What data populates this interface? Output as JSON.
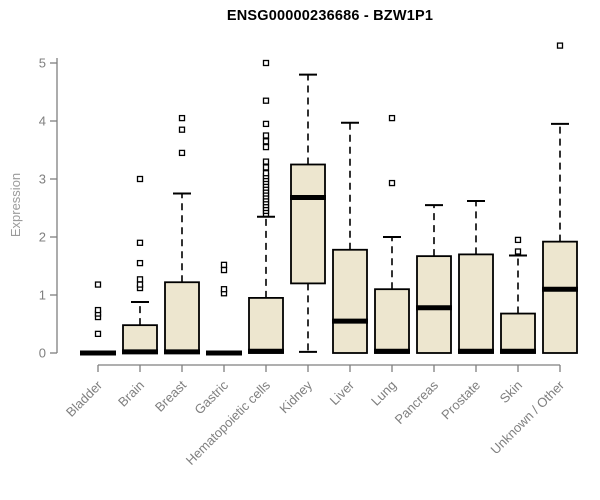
{
  "chart_data": {
    "type": "box",
    "title": "ENSG00000236686 - BZW1P1",
    "ylabel": "Expression",
    "xlabel": "",
    "ylim": [
      0,
      5.4
    ],
    "yticks": [
      0,
      1,
      2,
      3,
      4,
      5
    ],
    "grid": false,
    "legend": "none",
    "categories": [
      "Bladder",
      "Brain",
      "Breast",
      "Gastric",
      "Hematopoietic cells",
      "Kidney",
      "Liver",
      "Lung",
      "Pancreas",
      "Prostate",
      "Skin",
      "Unknown / Other"
    ],
    "boxes": [
      {
        "category": "Bladder",
        "q1": 0,
        "median": 0,
        "q3": 0.02,
        "whisker_low": 0,
        "whisker_high": 0.04,
        "outliers": [
          0.33,
          0.62,
          0.68,
          0.74,
          1.18
        ]
      },
      {
        "category": "Brain",
        "q1": 0,
        "median": 0.02,
        "q3": 0.48,
        "whisker_low": 0,
        "whisker_high": 0.88,
        "outliers": [
          1.12,
          1.18,
          1.27,
          1.55,
          1.9,
          3.0
        ]
      },
      {
        "category": "Breast",
        "q1": 0,
        "median": 0.02,
        "q3": 1.22,
        "whisker_low": 0,
        "whisker_high": 2.75,
        "outliers": [
          3.45,
          3.85,
          4.05
        ]
      },
      {
        "category": "Gastric",
        "q1": 0,
        "median": 0,
        "q3": 0.02,
        "whisker_low": 0,
        "whisker_high": 0.04,
        "outliers": [
          1.03,
          1.1,
          1.43,
          1.52
        ]
      },
      {
        "category": "Hematopoietic cells",
        "q1": 0,
        "median": 0.03,
        "q3": 0.95,
        "whisker_low": 0,
        "whisker_high": 2.35,
        "outliers": [
          2.4,
          2.45,
          2.5,
          2.55,
          2.6,
          2.65,
          2.7,
          2.75,
          2.8,
          2.85,
          2.9,
          2.95,
          3.0,
          3.05,
          3.1,
          3.2,
          3.3,
          3.55,
          3.65,
          3.75,
          3.95,
          4.35,
          5.0
        ]
      },
      {
        "category": "Kidney",
        "q1": 1.2,
        "median": 2.68,
        "q3": 3.25,
        "whisker_low": 0.02,
        "whisker_high": 4.8,
        "outliers": []
      },
      {
        "category": "Liver",
        "q1": 0,
        "median": 0.55,
        "q3": 1.78,
        "whisker_low": 0,
        "whisker_high": 3.97,
        "outliers": []
      },
      {
        "category": "Lung",
        "q1": 0,
        "median": 0.03,
        "q3": 1.1,
        "whisker_low": 0,
        "whisker_high": 2.0,
        "outliers": [
          2.93,
          4.05
        ]
      },
      {
        "category": "Pancreas",
        "q1": 0,
        "median": 0.78,
        "q3": 1.67,
        "whisker_low": 0,
        "whisker_high": 2.55,
        "outliers": []
      },
      {
        "category": "Prostate",
        "q1": 0,
        "median": 0.03,
        "q3": 1.7,
        "whisker_low": 0,
        "whisker_high": 2.62,
        "outliers": []
      },
      {
        "category": "Skin",
        "q1": 0,
        "median": 0.03,
        "q3": 0.68,
        "whisker_low": 0,
        "whisker_high": 1.68,
        "outliers": [
          1.75,
          1.95
        ]
      },
      {
        "category": "Unknown / Other",
        "q1": 0,
        "median": 1.1,
        "q3": 1.92,
        "whisker_low": 0,
        "whisker_high": 3.95,
        "outliers": [
          5.3
        ]
      }
    ],
    "colors": {
      "box_fill": "#EDE6CF",
      "box_border": "#000000",
      "median": "#000000",
      "whisker": "#000000",
      "outlier": "#000000",
      "axis": "#7F7F7F",
      "tick_label": "#7F7F7F",
      "axis_title": "#9B9B9B",
      "title": "#000000",
      "background": "#FFFFFF"
    }
  }
}
